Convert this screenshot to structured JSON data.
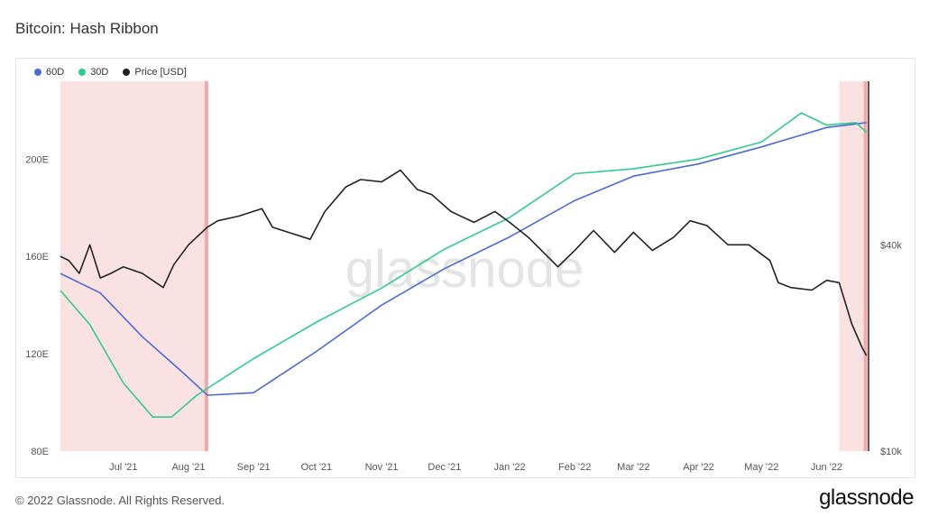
{
  "title": "Bitcoin: Hash Ribbon",
  "footer": {
    "copyright": "© 2022 Glassnode. All Rights Reserved.",
    "brand": "glassnode"
  },
  "watermark": "glassnode",
  "chart_data": {
    "type": "line",
    "series": [
      {
        "name": "60D",
        "color": "#4b6bd6",
        "axis": "left",
        "x": [
          "2021-06-01",
          "2021-06-20",
          "2021-07-10",
          "2021-07-31",
          "2021-08-10",
          "2021-09-01",
          "2021-10-01",
          "2021-11-01",
          "2021-12-01",
          "2022-01-01",
          "2022-02-01",
          "2022-03-01",
          "2022-04-01",
          "2022-05-01",
          "2022-06-01",
          "2022-06-20"
        ],
        "y": [
          153,
          145,
          127,
          111,
          103,
          104,
          121,
          140,
          155,
          168,
          183,
          193,
          198,
          205,
          213,
          215
        ]
      },
      {
        "name": "30D",
        "color": "#2ecc8f",
        "axis": "left",
        "x": [
          "2021-06-01",
          "2021-06-15",
          "2021-07-01",
          "2021-07-15",
          "2021-07-24",
          "2021-08-05",
          "2021-09-01",
          "2021-10-01",
          "2021-11-01",
          "2021-12-01",
          "2022-01-01",
          "2022-02-01",
          "2022-03-01",
          "2022-04-01",
          "2022-05-01",
          "2022-05-20",
          "2022-06-01",
          "2022-06-15",
          "2022-06-20"
        ],
        "y": [
          146,
          132,
          108,
          94,
          94,
          103,
          118,
          133,
          147,
          163,
          176,
          194,
          196,
          200,
          207,
          219,
          214,
          215,
          211
        ]
      },
      {
        "name": "Price [USD]",
        "color": "#222222",
        "axis": "right",
        "x": [
          "2021-06-01",
          "2021-06-05",
          "2021-06-10",
          "2021-06-15",
          "2021-06-20",
          "2021-06-25",
          "2021-07-01",
          "2021-07-10",
          "2021-07-20",
          "2021-07-25",
          "2021-08-01",
          "2021-08-10",
          "2021-08-15",
          "2021-08-25",
          "2021-09-05",
          "2021-09-10",
          "2021-09-20",
          "2021-09-28",
          "2021-10-05",
          "2021-10-15",
          "2021-10-22",
          "2021-11-01",
          "2021-11-10",
          "2021-11-18",
          "2021-11-25",
          "2021-12-04",
          "2021-12-15",
          "2021-12-25",
          "2022-01-01",
          "2022-01-10",
          "2022-01-20",
          "2022-01-24",
          "2022-02-01",
          "2022-02-10",
          "2022-02-20",
          "2022-03-01",
          "2022-03-10",
          "2022-03-20",
          "2022-03-28",
          "2022-04-05",
          "2022-04-15",
          "2022-04-25",
          "2022-05-05",
          "2022-05-09",
          "2022-05-15",
          "2022-05-25",
          "2022-06-01",
          "2022-06-07",
          "2022-06-13",
          "2022-06-18",
          "2022-06-20"
        ],
        "y": [
          37000,
          36000,
          33000,
          40000,
          32000,
          33000,
          34500,
          33000,
          30000,
          35000,
          40000,
          45000,
          47000,
          48500,
          51000,
          45000,
          43000,
          41500,
          50000,
          59000,
          62000,
          61000,
          66000,
          58000,
          56000,
          50000,
          46500,
          50000,
          46500,
          42000,
          36500,
          34500,
          38500,
          44000,
          38000,
          43500,
          38500,
          42000,
          47000,
          45500,
          40000,
          40000,
          36000,
          31000,
          30000,
          29500,
          31500,
          31000,
          23500,
          20000,
          19000
        ]
      }
    ],
    "capitulation_periods": [
      [
        "2021-06-01",
        "2021-08-10"
      ],
      [
        "2022-06-07",
        "2022-06-20"
      ]
    ],
    "x_range": [
      "2021-06-01",
      "2022-06-21"
    ],
    "x_ticks": [
      {
        "date": "2021-07-01",
        "label": "Jul '21"
      },
      {
        "date": "2021-08-01",
        "label": "Aug '21"
      },
      {
        "date": "2021-09-01",
        "label": "Sep '21"
      },
      {
        "date": "2021-10-01",
        "label": "Oct '21"
      },
      {
        "date": "2021-11-01",
        "label": "Nov '21"
      },
      {
        "date": "2021-12-01",
        "label": "Dec '21"
      },
      {
        "date": "2022-01-01",
        "label": "Jan '22"
      },
      {
        "date": "2022-02-01",
        "label": "Feb '22"
      },
      {
        "date": "2022-03-01",
        "label": "Mar '22"
      },
      {
        "date": "2022-04-01",
        "label": "Apr '22"
      },
      {
        "date": "2022-05-01",
        "label": "May '22"
      },
      {
        "date": "2022-06-01",
        "label": "Jun '22"
      }
    ],
    "y_left": {
      "range": [
        80,
        232
      ],
      "ticks": [
        {
          "v": 80,
          "label": "80E"
        },
        {
          "v": 120,
          "label": "120E"
        },
        {
          "v": 160,
          "label": "160E"
        },
        {
          "v": 200,
          "label": "200E"
        }
      ]
    },
    "y_right": {
      "scale": "log",
      "range": [
        10000,
        120000
      ],
      "ticks": [
        {
          "v": 10000,
          "label": "$10k"
        },
        {
          "v": 40000,
          "label": "$40k"
        }
      ]
    },
    "grid": false,
    "legend_position": "top-left"
  }
}
